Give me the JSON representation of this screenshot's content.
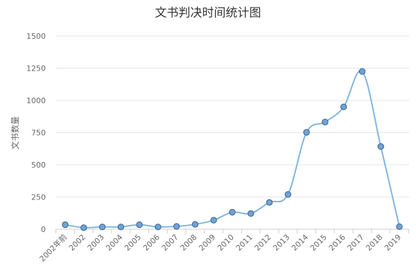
{
  "chart_data": {
    "type": "line",
    "title": "文书判决时间统计图",
    "ylabel": "文书数量",
    "xlabel": "",
    "categories": [
      "2002年前",
      "2002",
      "2003",
      "2004",
      "2005",
      "2006",
      "2007",
      "2008",
      "2009",
      "2010",
      "2011",
      "2012",
      "2013",
      "2014",
      "2015",
      "2016",
      "2017",
      "2018",
      "2019"
    ],
    "series": [
      {
        "values": [
          35,
          12,
          18,
          18,
          35,
          18,
          22,
          38,
          70,
          132,
          122,
          208,
          270,
          752,
          832,
          950,
          1225,
          642,
          20
        ],
        "color": "#7fb4e0"
      }
    ],
    "ylim": [
      0,
      1500
    ],
    "yticks": [
      0,
      250,
      500,
      750,
      1000,
      1250,
      1500
    ],
    "curve": "smooth",
    "marker": "circle",
    "marker_fill": "#6fa3d8",
    "marker_stroke": "#3a5f86",
    "grid": true,
    "grid_color": "#e6e6e6",
    "legend": "none"
  }
}
